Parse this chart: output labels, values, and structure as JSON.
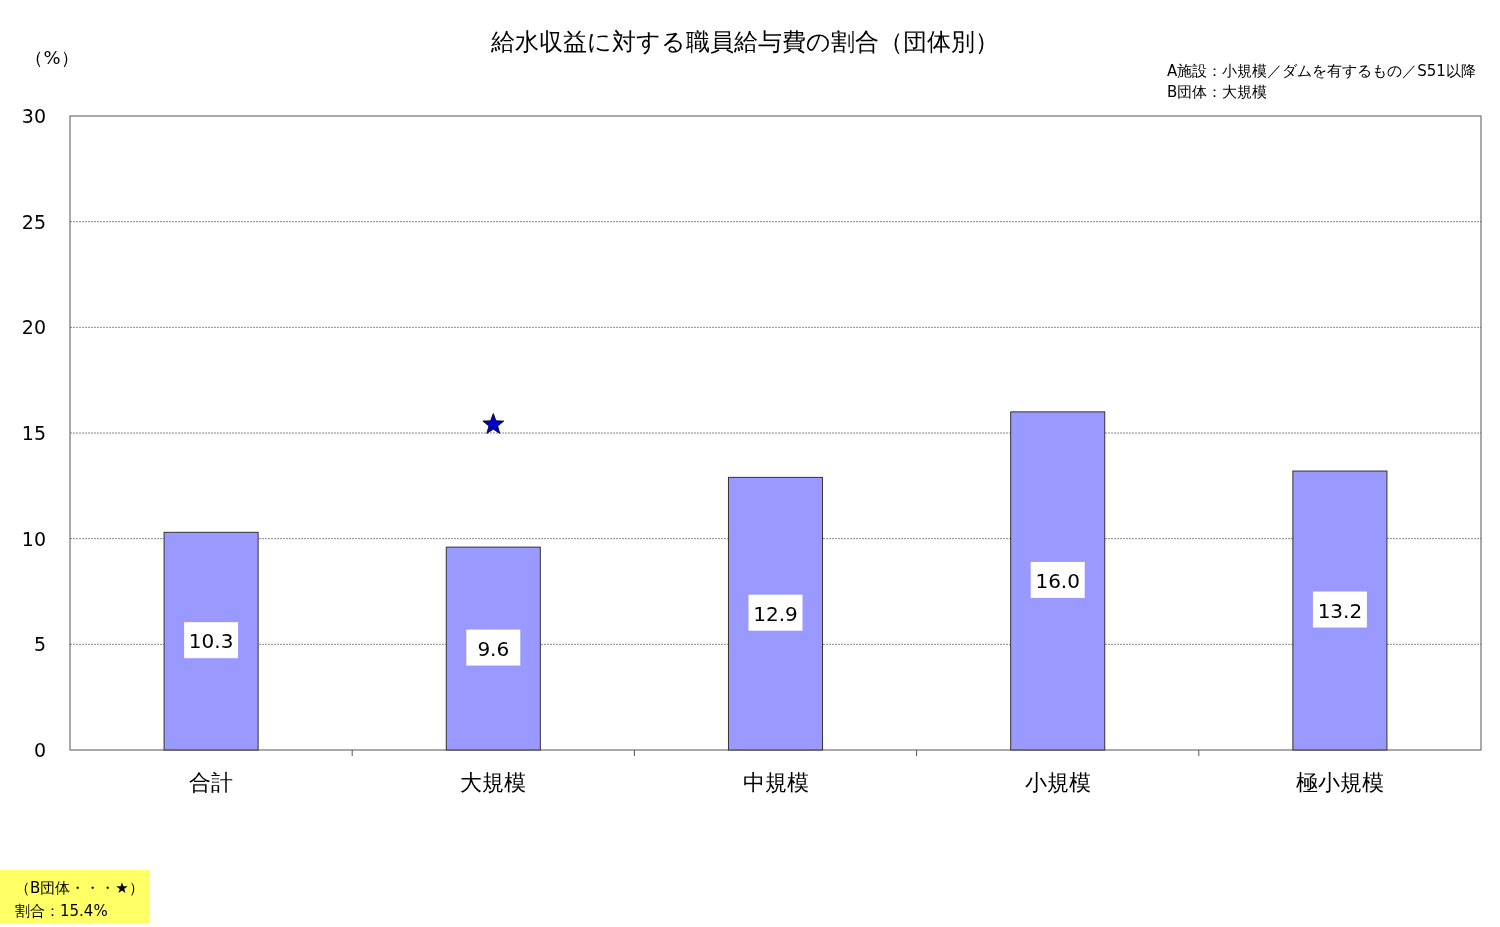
{
  "chart_data": {
    "type": "bar",
    "title": "給水収益に対する職員給与費の割合（団体別）",
    "ylabel": "（%）",
    "annotations": [
      "A施設：小規模／ダムを有するもの／S51以降",
      "B団体：大規模",
      "（B団体・・・★）",
      "割合：15.4%"
    ],
    "categories": [
      "合計",
      "大規模",
      "中規模",
      "小規模",
      "極小規模"
    ],
    "series": [
      {
        "color": "#9999ff",
        "values": [
          10.3,
          9.6,
          12.9,
          16.0,
          13.2
        ],
        "value_labels": [
          "10.3",
          "9.6",
          "12.9",
          "16.0",
          "13.2"
        ]
      },
      {
        "type": "scatter",
        "color": "#0000cc",
        "x": [
          "大規模"
        ],
        "values": [
          15.4
        ],
        "marker": "star"
      }
    ],
    "ylim": [
      0,
      30
    ],
    "yticks": [
      0,
      5,
      10,
      15,
      20,
      25,
      30
    ],
    "grid": "y"
  }
}
